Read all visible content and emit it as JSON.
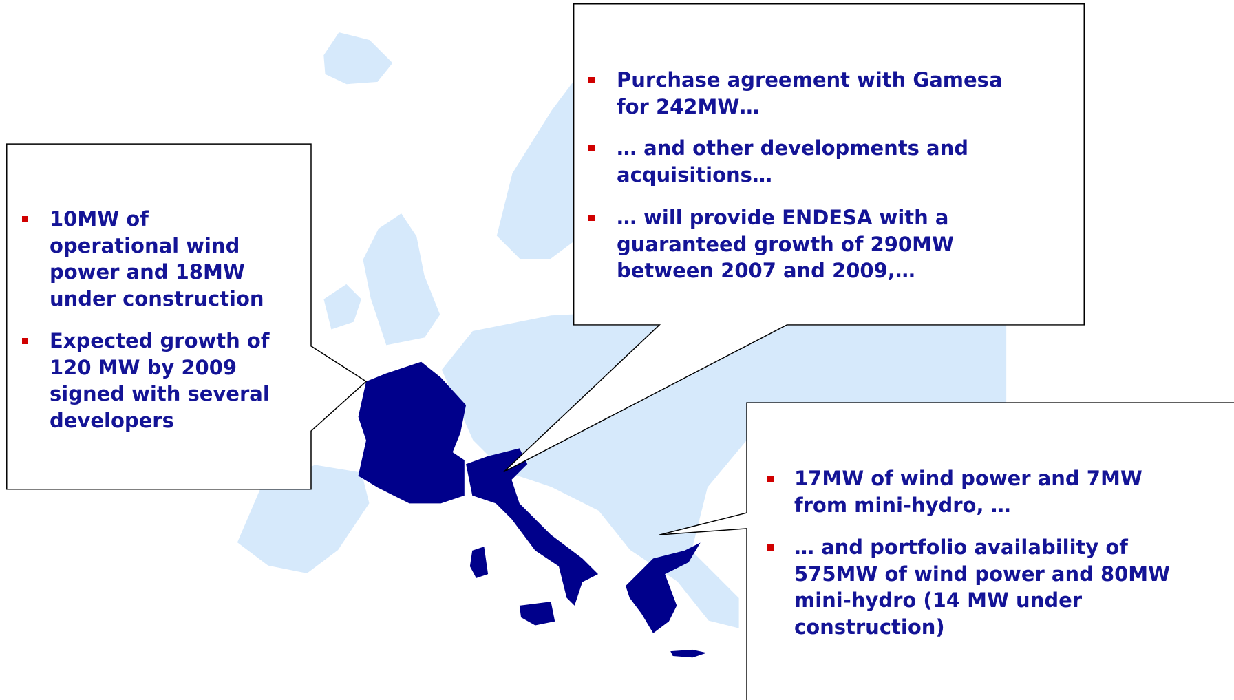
{
  "callouts": [
    {
      "bullets": [
        [
          "10MW of",
          "operational wind",
          "power and 18MW",
          "under construction"
        ],
        [
          "Expected growth of",
          "120 MW by 2009",
          "signed with several",
          "developers"
        ]
      ]
    },
    {
      "bullets": [
        [
          "Purchase agreement with Gamesa",
          "for 242MW…"
        ],
        [
          "… and other developments and",
          "acquisitions…"
        ],
        [
          "… will provide ENDESA with a",
          "guaranteed growth of 290MW",
          "between 2007 and 2009,…"
        ]
      ]
    },
    {
      "bullets": [
        [
          "17MW of wind power and 7MW",
          "from mini-hydro, …"
        ],
        [
          "… and portfolio availability of",
          "575MW of wind power and 80MW",
          "mini-hydro (14 MW under",
          "construction)"
        ]
      ]
    }
  ]
}
